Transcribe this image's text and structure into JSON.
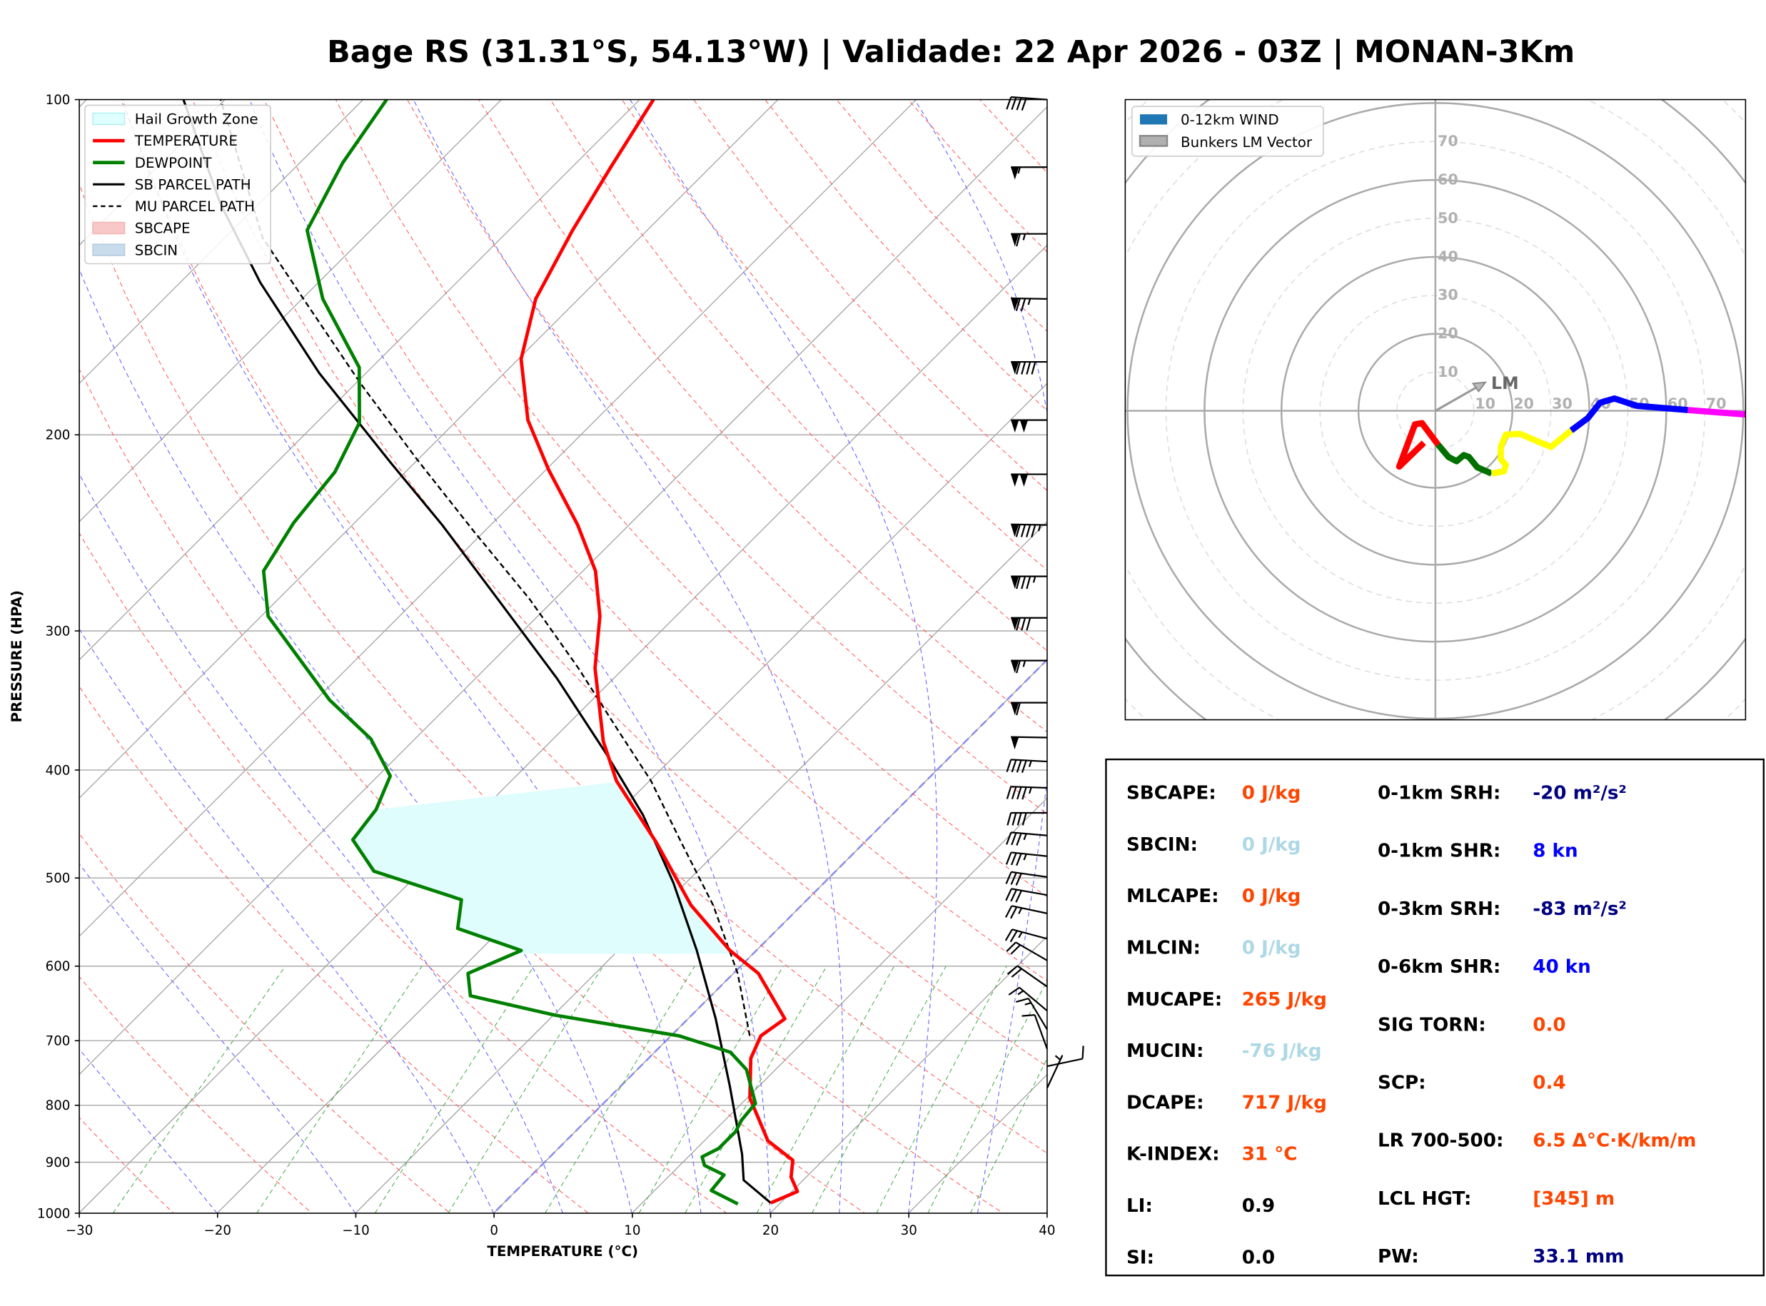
{
  "title": "Bage RS (31.31°S, 54.13°W) | Validade: 22 Apr 2026 - 03Z | MONAN-3Km",
  "chart_data": [
    {
      "type": "line",
      "subtype": "skew-t log-p",
      "xlabel": "TEMPERATURE (°C)",
      "ylabel": "PRESSURE (HPA)",
      "xlim": [
        -30,
        40
      ],
      "ylim": [
        1000,
        100
      ],
      "y_scale": "log",
      "x_ticks": [
        "−30",
        "−20",
        "−10",
        "0",
        "10",
        "20",
        "30",
        "40"
      ],
      "y_ticks": [
        "100",
        "200",
        "300",
        "400",
        "500",
        "600",
        "700",
        "800",
        "900",
        "1000"
      ],
      "grid": true,
      "legend_placement": "top-left",
      "legend": [
        "Hail Growth Zone",
        "TEMPERATURE",
        "DEWPOINT",
        "SB PARCEL PATH",
        "MU PARCEL PATH",
        "SBCAPE",
        "SBCIN"
      ],
      "colors": {
        "temperature": "#ff0000",
        "dewpoint": "#008000",
        "sb_parcel": "#000000",
        "mu_parcel": "#000000",
        "hail": "#e0fdfd",
        "sbcape": "#f8c8c8",
        "sbcin": "#c8dcec",
        "isotherm": "#a0a0a0",
        "dry_adiabat": "#ff6060",
        "moist_adiabat": "#6666ff",
        "mixing_ratio": "#50b050"
      },
      "series": [
        {
          "name": "TEMPERATURE",
          "points": [
            [
              979,
              19.3
            ],
            [
              956,
              20.4
            ],
            [
              928,
              18.9
            ],
            [
              896,
              17.8
            ],
            [
              861,
              14.6
            ],
            [
              788,
              10.2
            ],
            [
              726,
              7.4
            ],
            [
              693,
              6.5
            ],
            [
              669,
              7.0
            ],
            [
              609,
              1.8
            ],
            [
              581,
              -1.9
            ],
            [
              529,
              -8.0
            ],
            [
              465,
              -15.0
            ],
            [
              409,
              -22.4
            ],
            [
              377,
              -26.2
            ],
            [
              324,
              -32.1
            ],
            [
              291,
              -35.5
            ],
            [
              265,
              -39.1
            ],
            [
              241,
              -43.7
            ],
            [
              215,
              -49.8
            ],
            [
              194,
              -54.9
            ],
            [
              171,
              -59.8
            ],
            [
              151,
              -63.1
            ],
            [
              131,
              -65.4
            ],
            [
              115,
              -67.2
            ],
            [
              100,
              -69.0
            ]
          ]
        },
        {
          "name": "DEWPOINT",
          "points": [
            [
              981,
              17.0
            ],
            [
              954,
              14.1
            ],
            [
              924,
              13.9
            ],
            [
              906,
              11.8
            ],
            [
              890,
              11.0
            ],
            [
              875,
              11.6
            ],
            [
              845,
              11.6
            ],
            [
              825,
              11.2
            ],
            [
              797,
              11.0
            ],
            [
              743,
              7.9
            ],
            [
              717,
              5.5
            ],
            [
              693,
              0.6
            ],
            [
              664,
              -9.9
            ],
            [
              638,
              -17.4
            ],
            [
              609,
              -19.2
            ],
            [
              581,
              -17.0
            ],
            [
              555,
              -23.2
            ],
            [
              523,
              -25.0
            ],
            [
              493,
              -33.4
            ],
            [
              462,
              -37.2
            ],
            [
              434,
              -37.7
            ],
            [
              405,
              -39.1
            ],
            [
              375,
              -43.2
            ],
            [
              346,
              -49.0
            ],
            [
              291,
              -59.5
            ],
            [
              265,
              -63.1
            ],
            [
              240,
              -64.4
            ],
            [
              216,
              -65.1
            ],
            [
              195,
              -66.9
            ],
            [
              174,
              -70.9
            ],
            [
              151,
              -78.5
            ],
            [
              131,
              -84.6
            ],
            [
              114,
              -86.9
            ],
            [
              100,
              -88.3
            ]
          ]
        },
        {
          "name": "SB PARCEL PATH",
          "points": [
            [
              979,
              19.3
            ],
            [
              934,
              15.7
            ],
            [
              885,
              13.7
            ],
            [
              769,
              7.9
            ],
            [
              669,
              2.0
            ],
            [
              581,
              -4.3
            ],
            [
              505,
              -10.9
            ],
            [
              439,
              -18.0
            ],
            [
              386,
              -25.2
            ],
            [
              331,
              -34.1
            ],
            [
              281,
              -44.1
            ],
            [
              241,
              -53.5
            ],
            [
              212,
              -61.7
            ],
            [
              176,
              -73.4
            ],
            [
              146,
              -84.2
            ],
            [
              124,
              -92.8
            ],
            [
              100,
              -103.0
            ]
          ]
        },
        {
          "name": "MU PARCEL PATH",
          "points": [
            [
              693,
              5.7
            ],
            [
              609,
              0.3
            ],
            [
              529,
              -6.4
            ],
            [
              465,
              -13.2
            ],
            [
              409,
              -19.9
            ],
            [
              368,
              -26.0
            ],
            [
              324,
              -33.3
            ],
            [
              281,
              -41.8
            ],
            [
              244,
              -50.8
            ],
            [
              210,
              -60.2
            ],
            [
              180,
              -69.6
            ],
            [
              151,
              -79.9
            ],
            [
              133,
              -87.3
            ],
            [
              100,
              -100.3
            ]
          ]
        }
      ],
      "hail_growth_zone_hpa": [
        585,
        410
      ],
      "wind_barbs": [
        {
          "p": 100,
          "kn": 40,
          "dir": 274
        },
        {
          "p": 115,
          "kn": 55,
          "dir": 270
        },
        {
          "p": 132,
          "kn": 65,
          "dir": 270
        },
        {
          "p": 151,
          "kn": 75,
          "dir": 271
        },
        {
          "p": 172,
          "kn": 90,
          "dir": 270
        },
        {
          "p": 194,
          "kn": 100,
          "dir": 270
        },
        {
          "p": 217,
          "kn": 100,
          "dir": 270
        },
        {
          "p": 241,
          "kn": 95,
          "dir": 271
        },
        {
          "p": 268,
          "kn": 85,
          "dir": 270
        },
        {
          "p": 292,
          "kn": 80,
          "dir": 270
        },
        {
          "p": 319,
          "kn": 65,
          "dir": 270
        },
        {
          "p": 348,
          "kn": 60,
          "dir": 270
        },
        {
          "p": 374,
          "kn": 50,
          "dir": 271
        },
        {
          "p": 393,
          "kn": 45,
          "dir": 273
        },
        {
          "p": 415,
          "kn": 45,
          "dir": 272
        },
        {
          "p": 437,
          "kn": 40,
          "dir": 270
        },
        {
          "p": 458,
          "kn": 35,
          "dir": 275
        },
        {
          "p": 478,
          "kn": 35,
          "dir": 276
        },
        {
          "p": 499,
          "kn": 30,
          "dir": 278
        },
        {
          "p": 518,
          "kn": 30,
          "dir": 280
        },
        {
          "p": 538,
          "kn": 25,
          "dir": 282
        },
        {
          "p": 567,
          "kn": 25,
          "dir": 285
        },
        {
          "p": 593,
          "kn": 20,
          "dir": 300
        },
        {
          "p": 626,
          "kn": 20,
          "dir": 305
        },
        {
          "p": 658,
          "kn": 15,
          "dir": 310
        },
        {
          "p": 684,
          "kn": 15,
          "dir": 329
        },
        {
          "p": 712,
          "kn": 10,
          "dir": 340
        },
        {
          "p": 738,
          "kn": 10,
          "dir": 78
        },
        {
          "p": 772,
          "kn": 3,
          "dir": 25
        }
      ]
    },
    {
      "type": "line",
      "subtype": "hodograph",
      "units": "kn",
      "range": [
        -80,
        80
      ],
      "ring_labels": [
        "10",
        "20",
        "30",
        "40",
        "50",
        "60",
        "70"
      ],
      "legend": [
        "0-12km WIND",
        "Bunkers LM Vector"
      ],
      "legend_placement": "top-left",
      "legend_colors": {
        "wind": "#1f77b4",
        "lm": "#b0b0b0"
      },
      "lm_label": "LM",
      "lm_vector_uv": [
        13,
        7.4
      ],
      "segments": [
        {
          "color": "#ff0000",
          "uv": [
            [
              -3.0,
              -8.3
            ],
            [
              -9.4,
              -14.5
            ],
            [
              -5.3,
              -3.5
            ],
            [
              -3.5,
              -3.2
            ],
            [
              0.7,
              -8.8
            ]
          ]
        },
        {
          "color": "#007000",
          "uv": [
            [
              0.7,
              -8.8
            ],
            [
              3.4,
              -12.0
            ],
            [
              5.5,
              -13.1
            ],
            [
              7.4,
              -11.5
            ],
            [
              8.7,
              -12.0
            ],
            [
              10.9,
              -14.7
            ],
            [
              14.6,
              -16.3
            ]
          ]
        },
        {
          "color": "#ffff00",
          "uv": [
            [
              14.6,
              -16.3
            ],
            [
              17.8,
              -15.7
            ],
            [
              18.3,
              -14.1
            ],
            [
              17.0,
              -12.6
            ],
            [
              17.0,
              -9.4
            ],
            [
              18.3,
              -6.2
            ],
            [
              22.0,
              -6.0
            ],
            [
              30.0,
              -9.4
            ],
            [
              35.3,
              -5.1
            ]
          ]
        },
        {
          "color": "#0000ff",
          "uv": [
            [
              35.3,
              -5.1
            ],
            [
              39.6,
              -1.9
            ],
            [
              42.8,
              2.1
            ],
            [
              46.5,
              3.2
            ],
            [
              52.3,
              1.3
            ],
            [
              65.6,
              0.2
            ]
          ]
        },
        {
          "color": "#ff00ff",
          "uv": [
            [
              65.6,
              0.2
            ],
            [
              80.0,
              -0.9
            ],
            [
              90.0,
              -1.5
            ]
          ]
        }
      ]
    }
  ],
  "stats": {
    "left": [
      {
        "label": "SBCAPE:",
        "value": "0 J/kg",
        "color": "#ff4500"
      },
      {
        "label": "SBCIN:",
        "value": "0 J/kg",
        "color": "#add8e6"
      },
      {
        "label": "MLCAPE:",
        "value": "0 J/kg",
        "color": "#ff4500"
      },
      {
        "label": "MLCIN:",
        "value": "0 J/kg",
        "color": "#add8e6"
      },
      {
        "label": "MUCAPE:",
        "value": "265 J/kg",
        "color": "#ff4500"
      },
      {
        "label": "MUCIN:",
        "value": "-76 J/kg",
        "color": "#add8e6"
      },
      {
        "label": "DCAPE:",
        "value": "717 J/kg",
        "color": "#ff4500"
      },
      {
        "label": "K-INDEX:",
        "value": "31 °C",
        "color": "#ff4500"
      },
      {
        "label": "LI:",
        "value": "0.9",
        "color": "#000000"
      },
      {
        "label": "SI:",
        "value": "0.0",
        "color": "#000000"
      }
    ],
    "right": [
      {
        "label": "0-1km SRH:",
        "value": "-20 m²/s²",
        "color": "#000080"
      },
      {
        "label": "0-1km SHR:",
        "value": "8 kn",
        "color": "#0000ff"
      },
      {
        "label": "0-3km SRH:",
        "value": "-83 m²/s²",
        "color": "#000080"
      },
      {
        "label": "0-6km SHR:",
        "value": "40 kn",
        "color": "#0000ff"
      },
      {
        "label": "SIG TORN:",
        "value": "0.0",
        "color": "#ff4500"
      },
      {
        "label": "SCP:",
        "value": "0.4",
        "color": "#ff4500"
      },
      {
        "label": "LR 700-500:",
        "value": "6.5 Δ°C·K/km/m",
        "color": "#ff4500"
      },
      {
        "label": "LCL HGT:",
        "value": "[345] m",
        "color": "#ff4500"
      },
      {
        "label": "PW:",
        "value": "33.1 mm",
        "color": "#000080"
      }
    ]
  }
}
